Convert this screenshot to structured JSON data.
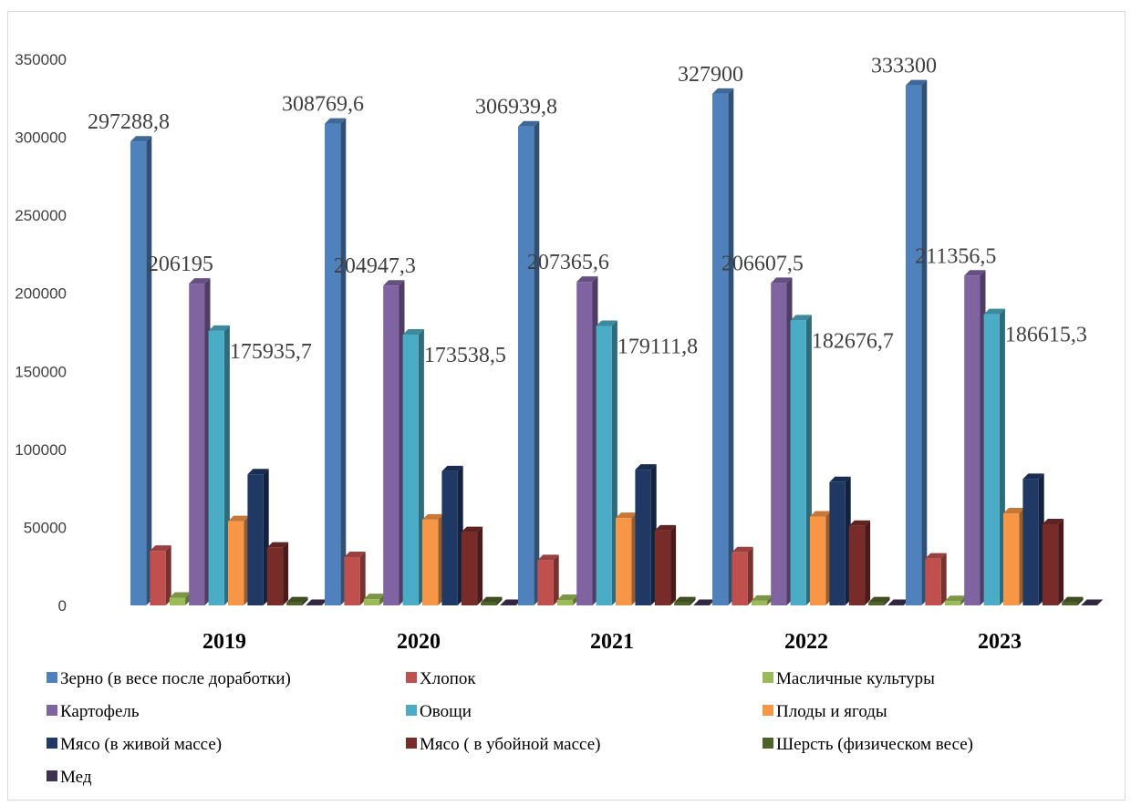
{
  "chart_data": {
    "type": "bar",
    "categories": [
      "2019",
      "2020",
      "2021",
      "2022",
      "2023"
    ],
    "ylim": [
      0,
      350000
    ],
    "yticks": [
      0,
      50000,
      100000,
      150000,
      200000,
      250000,
      300000,
      350000
    ],
    "grid": false,
    "legend_position": "bottom",
    "series": [
      {
        "name": "Зерно (в весе после доработки)",
        "color": "#4F81BD",
        "values": [
          297288.8,
          308769.6,
          306939.8,
          327900,
          333300
        ],
        "labels": [
          "297288,8",
          "308769,6",
          "306939,8",
          "327900",
          "333300"
        ]
      },
      {
        "name": "Хлопок",
        "color": "#C0504D",
        "values": [
          35000,
          31000,
          29000,
          34000,
          30000
        ]
      },
      {
        "name": "Масличные культуры",
        "color": "#9BBB59",
        "values": [
          5000,
          4000,
          3500,
          3000,
          2800
        ]
      },
      {
        "name": "Картофель",
        "color": "#8064A2",
        "values": [
          206195,
          204947.3,
          207365.6,
          206607.5,
          211356.5
        ],
        "labels": [
          "206195",
          "204947,3",
          "207365,6",
          "206607,5",
          "211356,5"
        ]
      },
      {
        "name": "Овощи",
        "color": "#4BACC6",
        "values": [
          175935.7,
          173538.5,
          179111.8,
          182676.7,
          186615.3
        ],
        "labels": [
          "175935,7",
          "173538,5",
          "179111,8",
          "182676,7",
          "186615,3"
        ]
      },
      {
        "name": "Плоды и ягоды",
        "color": "#F79646",
        "values": [
          54000,
          55000,
          56000,
          57000,
          59000
        ]
      },
      {
        "name": "Мясо (в живой массе)",
        "color": "#1F3864",
        "values": [
          84000,
          86000,
          87000,
          79000,
          81000
        ]
      },
      {
        "name": "Мясо ( в убойной массе)",
        "color": "#772C2A",
        "values": [
          37000,
          47000,
          48000,
          51000,
          52000
        ]
      },
      {
        "name": "Шерсть (физическом весе)",
        "color": "#4F6228",
        "values": [
          2000,
          2000,
          2000,
          2000,
          2000
        ]
      },
      {
        "name": "Мед",
        "color": "#3F3151",
        "values": [
          300,
          300,
          300,
          300,
          300
        ]
      }
    ]
  }
}
